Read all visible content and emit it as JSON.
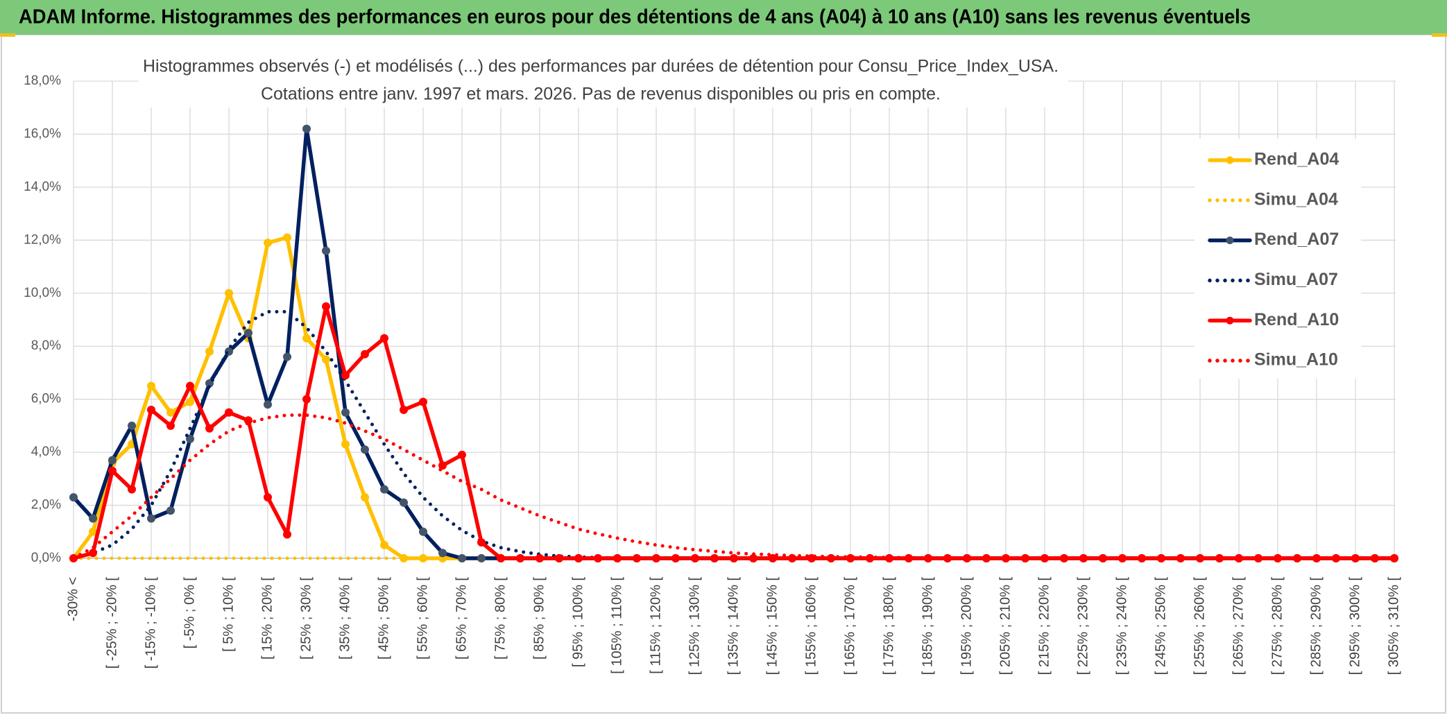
{
  "chart_data": {
    "type": "line",
    "title": "ADAM Informe. Histogrammes des performances en euros pour des détentions de 4 ans (A04) à 10 ans (A10) sans les revenus éventuels",
    "subtitle": [
      "Histogrammes observés (-) et modélisés (...) des performances par durées de détention pour Consu_Price_Index_USA.",
      "Cotations entre janv. 1997 et mars. 2026. Pas de revenus disponibles ou pris en compte."
    ],
    "categories": [
      "-30% <",
      null,
      "[ -25% ; -20% [",
      null,
      "[ -15% ; -10% [",
      null,
      "[ -5% ; 0% [",
      null,
      "[ 5% ; 10% [",
      null,
      "[ 15% ; 20% [",
      null,
      "[ 25% ; 30% [",
      null,
      "[ 35% ; 40% [",
      null,
      "[ 45% ; 50% [",
      null,
      "[ 55% ; 60% [",
      null,
      "[ 65% ; 70% [",
      null,
      "[ 75% ; 80% [",
      null,
      "[ 85% ; 90% [",
      null,
      "[ 95% ; 100% [",
      null,
      "[ 105% ; 110% [",
      null,
      "[ 115% ; 120% [",
      null,
      "[ 125% ; 130% [",
      null,
      "[ 135% ; 140% [",
      null,
      "[ 145% ; 150% [",
      null,
      "[ 155% ; 160% [",
      null,
      "[ 165% ; 170% [",
      null,
      "[ 175% ; 180% [",
      null,
      "[ 185% ; 190% [",
      null,
      "[ 195% ; 200% [",
      null,
      "[ 205% ; 210% [",
      null,
      "[ 215% ; 220% [",
      null,
      "[ 225% ; 230% [",
      null,
      "[ 235% ; 240% [",
      null,
      "[ 245% ; 250% [",
      null,
      "[ 255% ; 260% [",
      null,
      "[ 265% ; 270% [",
      null,
      "[ 275% ; 280% [",
      null,
      "[ 285% ; 290% [",
      null,
      "[ 295% ; 300% [",
      null,
      "[ 305% ; 310% ["
    ],
    "ylim": [
      0,
      18
    ],
    "yticks": [
      {
        "value": 0,
        "label": "0,0%"
      },
      {
        "value": 2,
        "label": "2,0%"
      },
      {
        "value": 4,
        "label": "4,0%"
      },
      {
        "value": 6,
        "label": "6,0%"
      },
      {
        "value": 8,
        "label": "8,0%"
      },
      {
        "value": 10,
        "label": "10,0%"
      },
      {
        "value": 12,
        "label": "12,0%"
      },
      {
        "value": 14,
        "label": "14,0%"
      },
      {
        "value": 16,
        "label": "16,0%"
      },
      {
        "value": 18,
        "label": "18,0%"
      }
    ],
    "grid": true,
    "legend": "right",
    "series": [
      {
        "name": "Rend_A04",
        "color": "#ffc000",
        "line_style": "solid",
        "markers": true,
        "values": [
          0,
          1.0,
          3.6,
          4.3,
          6.5,
          5.5,
          5.9,
          7.8,
          10.0,
          8.3,
          11.9,
          12.1,
          8.3,
          7.5,
          4.3,
          2.3,
          0.5,
          0,
          0,
          0,
          0,
          0,
          0,
          0,
          0,
          0,
          0,
          0,
          0,
          0,
          0,
          0,
          0,
          0,
          0,
          0,
          0,
          0,
          0,
          0,
          0,
          0,
          0,
          0,
          0,
          0,
          0,
          0,
          0,
          0,
          0,
          0,
          0,
          0,
          0,
          0,
          0,
          0,
          0,
          0,
          0,
          0,
          0,
          0,
          0,
          0,
          0,
          0,
          0
        ]
      },
      {
        "name": "Simu_A04",
        "color": "#ffc000",
        "line_style": "dotted",
        "markers": false,
        "values": [
          0,
          0,
          0,
          0,
          0,
          0,
          0,
          0,
          0,
          0,
          0,
          0,
          0,
          0,
          0,
          0,
          0,
          0,
          0,
          0,
          0,
          0,
          0,
          0,
          0,
          0,
          0,
          0,
          0,
          0,
          0,
          0,
          0,
          0,
          0,
          0,
          0,
          0,
          0,
          0,
          0,
          0,
          0,
          0,
          0,
          0,
          0,
          0,
          0,
          0,
          0,
          0,
          0,
          0,
          0,
          0,
          0,
          0,
          0,
          0,
          0,
          0,
          0,
          0,
          0,
          0,
          0,
          0,
          0
        ]
      },
      {
        "name": "Rend_A07",
        "color": "#002060",
        "marker_color": "#44546a",
        "line_style": "solid",
        "markers": true,
        "values": [
          2.3,
          1.5,
          3.7,
          5.0,
          1.5,
          1.8,
          4.5,
          6.6,
          7.8,
          8.5,
          5.8,
          7.6,
          16.2,
          11.6,
          5.5,
          4.1,
          2.6,
          2.1,
          1.0,
          0.2,
          0,
          0,
          0,
          0,
          0,
          0,
          0,
          0,
          0,
          0,
          0,
          0,
          0,
          0,
          0,
          0,
          0,
          0,
          0,
          0,
          0,
          0,
          0,
          0,
          0,
          0,
          0,
          0,
          0,
          0,
          0,
          0,
          0,
          0,
          0,
          0,
          0,
          0,
          0,
          0,
          0,
          0,
          0,
          0,
          0,
          0,
          0,
          0,
          0
        ]
      },
      {
        "name": "Simu_A07",
        "color": "#002060",
        "line_style": "dotted",
        "markers": false,
        "values": [
          0,
          0.2,
          0.5,
          1.1,
          2.0,
          3.3,
          4.9,
          6.5,
          7.9,
          8.9,
          9.3,
          9.3,
          8.7,
          7.8,
          6.7,
          5.5,
          4.3,
          3.2,
          2.3,
          1.6,
          1.05,
          0.65,
          0.4,
          0.25,
          0.15,
          0.08,
          0.05,
          0.02,
          0,
          0,
          0,
          0,
          0,
          0,
          0,
          0,
          0,
          0,
          0,
          0,
          0,
          0,
          0,
          0,
          0,
          0,
          0,
          0,
          0,
          0,
          0,
          0,
          0,
          0,
          0,
          0,
          0,
          0,
          0,
          0,
          0,
          0,
          0,
          0,
          0,
          0,
          0,
          0,
          0
        ]
      },
      {
        "name": "Rend_A10",
        "color": "#ff0000",
        "line_style": "solid",
        "markers": true,
        "values": [
          0,
          0.2,
          3.3,
          2.6,
          5.6,
          5.0,
          6.5,
          4.9,
          5.5,
          5.2,
          2.3,
          0.9,
          6.0,
          9.5,
          6.9,
          7.7,
          8.3,
          5.6,
          5.9,
          3.5,
          3.9,
          0.6,
          0,
          0,
          0,
          0,
          0,
          0,
          0,
          0,
          0,
          0,
          0,
          0,
          0,
          0,
          0,
          0,
          0,
          0,
          0,
          0,
          0,
          0,
          0,
          0,
          0,
          0,
          0,
          0,
          0,
          0,
          0,
          0,
          0,
          0,
          0,
          0,
          0,
          0,
          0,
          0,
          0,
          0,
          0,
          0,
          0,
          0,
          0
        ]
      },
      {
        "name": "Simu_A10",
        "color": "#ff0000",
        "line_style": "dotted",
        "markers": false,
        "values": [
          0,
          0.4,
          1.0,
          1.6,
          2.3,
          3.0,
          3.7,
          4.3,
          4.8,
          5.1,
          5.3,
          5.4,
          5.4,
          5.3,
          5.1,
          4.8,
          4.5,
          4.1,
          3.7,
          3.3,
          2.9,
          2.6,
          2.2,
          1.9,
          1.6,
          1.35,
          1.1,
          0.92,
          0.76,
          0.62,
          0.5,
          0.4,
          0.32,
          0.26,
          0.2,
          0.16,
          0.13,
          0.1,
          0.08,
          0.06,
          0.05,
          0.04,
          0.03,
          0.02,
          0.02,
          0.01,
          0,
          0,
          0,
          0,
          0,
          0,
          0,
          0,
          0,
          0,
          0,
          0,
          0,
          0,
          0,
          0,
          0,
          0,
          0,
          0,
          0,
          0,
          0
        ]
      }
    ]
  }
}
